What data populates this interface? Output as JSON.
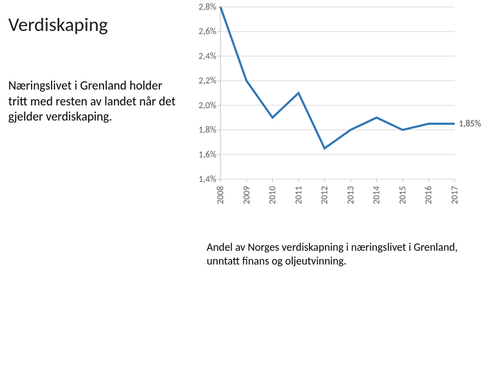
{
  "title": "Verdiskaping",
  "description": "Næringslivet i Grenland holder tritt med resten av landet når det gjelder verdiskaping.",
  "caption": "Andel av Norges verdiskapning i næringslivet i Grenland, unntatt finans og oljeutvinning.",
  "chart": {
    "type": "line",
    "background_color": "#ffffff",
    "grid_color": "#d9d9d9",
    "line_color": "#2e75b6",
    "line_width": 3,
    "y_axis": {
      "min": 1.4,
      "max": 2.8,
      "tick_step": 0.2,
      "ticks": [
        1.4,
        1.6,
        1.8,
        2.0,
        2.2,
        2.4,
        2.6,
        2.8
      ],
      "tick_labels": [
        "1,4%",
        "1,6%",
        "1,8%",
        "2,0%",
        "2,2%",
        "2,4%",
        "2,6%",
        "2,8%"
      ],
      "label_fontsize": 13,
      "label_color": "#595959"
    },
    "x_axis": {
      "categories": [
        "2008",
        "2009",
        "2010",
        "2011",
        "2012",
        "2013",
        "2014",
        "2015",
        "2016",
        "2017"
      ],
      "label_fontsize": 13,
      "label_color": "#595959",
      "rotation": -90
    },
    "series": [
      {
        "name": "Grenland",
        "color": "#2e75b6",
        "values": [
          2.8,
          2.2,
          1.9,
          2.1,
          1.65,
          1.8,
          1.9,
          1.8,
          1.85,
          1.85
        ]
      }
    ],
    "end_label": "1,85%",
    "end_label_color": "#404040",
    "end_label_fontsize": 13
  }
}
